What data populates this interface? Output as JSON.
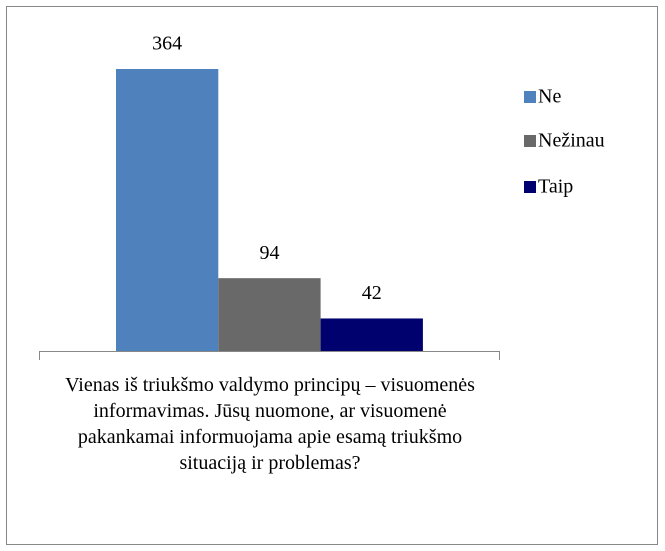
{
  "chart_data": {
    "type": "bar",
    "categories": [
      "Vienas iš triukšmo valdymo principų – visuomenės informavimas. Jūsų nuomone, ar visuomenė pakankamai informuojama apie esamą triukšmo situaciją ir problemas?"
    ],
    "series": [
      {
        "name": "Ne",
        "color": "#4f81bd",
        "values": [
          364
        ]
      },
      {
        "name": "Nežinau",
        "color": "#696969",
        "values": [
          94
        ]
      },
      {
        "name": "Taip",
        "color": "#00006e",
        "values": [
          42
        ]
      }
    ],
    "legend": "right"
  }
}
